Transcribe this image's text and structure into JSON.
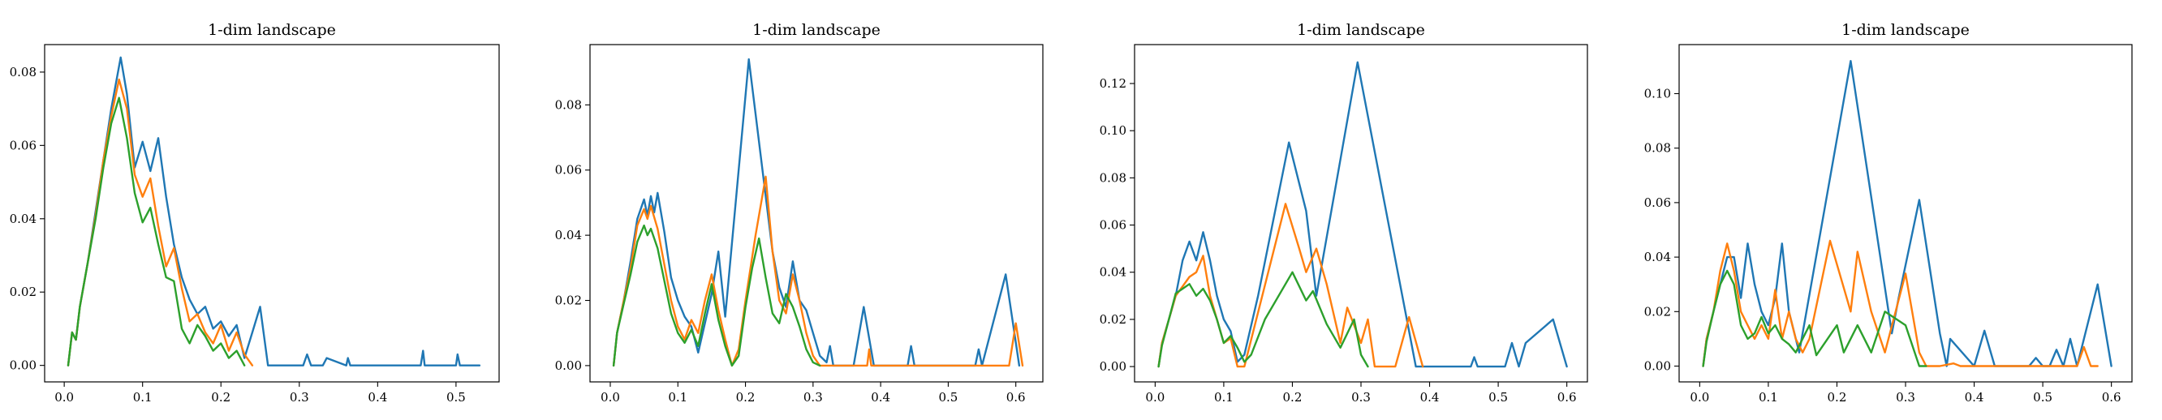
{
  "chart_data": [
    {
      "type": "line",
      "title": "1-dim landscape",
      "xlabel": "",
      "ylabel": "",
      "xlim": [
        -0.025,
        0.555
      ],
      "ylim": [
        -0.0045,
        0.0875
      ],
      "xticks": [
        0.0,
        0.1,
        0.2,
        0.3,
        0.4,
        0.5
      ],
      "xtick_labels": [
        "0.0",
        "0.1",
        "0.2",
        "0.3",
        "0.4",
        "0.5"
      ],
      "yticks": [
        0.0,
        0.02,
        0.04,
        0.06,
        0.08
      ],
      "ytick_labels": [
        "0.00",
        "0.02",
        "0.04",
        "0.06",
        "0.08"
      ],
      "grid": false,
      "series": [
        {
          "color": "#1f77b4",
          "x": [
            0.005,
            0.01,
            0.015,
            0.02,
            0.03,
            0.04,
            0.05,
            0.06,
            0.072,
            0.08,
            0.09,
            0.1,
            0.11,
            0.12,
            0.13,
            0.14,
            0.15,
            0.16,
            0.17,
            0.18,
            0.19,
            0.2,
            0.21,
            0.22,
            0.23,
            0.24,
            0.25,
            0.26,
            0.305,
            0.31,
            0.315,
            0.33,
            0.335,
            0.36,
            0.362,
            0.365,
            0.455,
            0.458,
            0.46,
            0.5,
            0.502,
            0.505,
            0.53
          ],
          "y": [
            0.0,
            0.009,
            0.007,
            0.016,
            0.028,
            0.042,
            0.056,
            0.07,
            0.084,
            0.074,
            0.054,
            0.061,
            0.053,
            0.062,
            0.046,
            0.033,
            0.024,
            0.018,
            0.014,
            0.016,
            0.01,
            0.012,
            0.008,
            0.011,
            0.002,
            0.009,
            0.016,
            0.0,
            0.0,
            0.003,
            0.0,
            0.0,
            0.002,
            0.0,
            0.002,
            0.0,
            0.0,
            0.004,
            0.0,
            0.0,
            0.003,
            0.0,
            0.0
          ]
        },
        {
          "color": "#ff7f0e",
          "x": [
            0.005,
            0.01,
            0.015,
            0.02,
            0.03,
            0.04,
            0.05,
            0.06,
            0.07,
            0.08,
            0.09,
            0.1,
            0.11,
            0.12,
            0.13,
            0.14,
            0.15,
            0.16,
            0.17,
            0.18,
            0.19,
            0.2,
            0.21,
            0.22,
            0.23,
            0.24
          ],
          "y": [
            0.0,
            0.009,
            0.007,
            0.016,
            0.028,
            0.041,
            0.056,
            0.068,
            0.078,
            0.07,
            0.052,
            0.046,
            0.051,
            0.038,
            0.027,
            0.032,
            0.021,
            0.012,
            0.014,
            0.009,
            0.006,
            0.011,
            0.004,
            0.009,
            0.003,
            0.0
          ]
        },
        {
          "color": "#2ca02c",
          "x": [
            0.005,
            0.01,
            0.015,
            0.02,
            0.03,
            0.04,
            0.05,
            0.06,
            0.07,
            0.08,
            0.09,
            0.1,
            0.11,
            0.12,
            0.13,
            0.14,
            0.15,
            0.16,
            0.17,
            0.18,
            0.19,
            0.2,
            0.21,
            0.22,
            0.23
          ],
          "y": [
            0.0,
            0.009,
            0.007,
            0.016,
            0.028,
            0.04,
            0.054,
            0.066,
            0.073,
            0.062,
            0.047,
            0.039,
            0.043,
            0.033,
            0.024,
            0.023,
            0.01,
            0.006,
            0.011,
            0.008,
            0.004,
            0.006,
            0.002,
            0.004,
            0.0
          ]
        }
      ]
    },
    {
      "type": "line",
      "title": "1-dim landscape",
      "xlabel": "",
      "ylabel": "",
      "xlim": [
        -0.03,
        0.64
      ],
      "ylim": [
        -0.005,
        0.0985
      ],
      "xticks": [
        0.0,
        0.1,
        0.2,
        0.3,
        0.4,
        0.5,
        0.6
      ],
      "xtick_labels": [
        "0.0",
        "0.1",
        "0.2",
        "0.3",
        "0.4",
        "0.5",
        "0.6"
      ],
      "yticks": [
        0.0,
        0.02,
        0.04,
        0.06,
        0.08
      ],
      "ytick_labels": [
        "0.00",
        "0.02",
        "0.04",
        "0.06",
        "0.08"
      ],
      "grid": false,
      "series": [
        {
          "color": "#1f77b4",
          "x": [
            0.005,
            0.01,
            0.02,
            0.03,
            0.04,
            0.05,
            0.055,
            0.06,
            0.065,
            0.07,
            0.08,
            0.09,
            0.1,
            0.11,
            0.12,
            0.13,
            0.15,
            0.16,
            0.17,
            0.205,
            0.24,
            0.25,
            0.26,
            0.27,
            0.28,
            0.29,
            0.3,
            0.31,
            0.32,
            0.325,
            0.33,
            0.335,
            0.36,
            0.375,
            0.39,
            0.44,
            0.445,
            0.45,
            0.54,
            0.545,
            0.55,
            0.585,
            0.605
          ],
          "y": [
            0.0,
            0.01,
            0.02,
            0.032,
            0.045,
            0.051,
            0.046,
            0.052,
            0.047,
            0.053,
            0.041,
            0.027,
            0.02,
            0.015,
            0.012,
            0.004,
            0.022,
            0.035,
            0.015,
            0.094,
            0.035,
            0.024,
            0.018,
            0.032,
            0.02,
            0.017,
            0.01,
            0.003,
            0.001,
            0.006,
            0.0,
            0.0,
            0.0,
            0.018,
            0.0,
            0.0,
            0.006,
            0.0,
            0.0,
            0.005,
            0.0,
            0.028,
            0.0
          ]
        },
        {
          "color": "#ff7f0e",
          "x": [
            0.005,
            0.01,
            0.02,
            0.03,
            0.04,
            0.05,
            0.055,
            0.06,
            0.07,
            0.08,
            0.09,
            0.1,
            0.11,
            0.12,
            0.13,
            0.14,
            0.15,
            0.16,
            0.17,
            0.18,
            0.19,
            0.2,
            0.215,
            0.23,
            0.24,
            0.25,
            0.26,
            0.27,
            0.28,
            0.29,
            0.3,
            0.31,
            0.32,
            0.38,
            0.383,
            0.386,
            0.59,
            0.6,
            0.61
          ],
          "y": [
            0.0,
            0.01,
            0.02,
            0.03,
            0.043,
            0.048,
            0.045,
            0.049,
            0.042,
            0.031,
            0.02,
            0.012,
            0.008,
            0.014,
            0.01,
            0.02,
            0.028,
            0.017,
            0.008,
            0.0,
            0.005,
            0.02,
            0.04,
            0.058,
            0.035,
            0.02,
            0.016,
            0.028,
            0.02,
            0.01,
            0.003,
            0.0,
            0.0,
            0.0,
            0.005,
            0.0,
            0.0,
            0.013,
            0.0
          ]
        },
        {
          "color": "#2ca02c",
          "x": [
            0.005,
            0.01,
            0.02,
            0.03,
            0.04,
            0.05,
            0.055,
            0.06,
            0.07,
            0.08,
            0.09,
            0.1,
            0.11,
            0.12,
            0.13,
            0.14,
            0.15,
            0.16,
            0.17,
            0.18,
            0.19,
            0.2,
            0.21,
            0.22,
            0.23,
            0.24,
            0.25,
            0.26,
            0.27,
            0.28,
            0.29,
            0.3,
            0.31
          ],
          "y": [
            0.0,
            0.01,
            0.019,
            0.028,
            0.038,
            0.043,
            0.04,
            0.042,
            0.036,
            0.026,
            0.016,
            0.01,
            0.007,
            0.011,
            0.006,
            0.016,
            0.025,
            0.014,
            0.006,
            0.0,
            0.003,
            0.018,
            0.03,
            0.039,
            0.027,
            0.016,
            0.013,
            0.022,
            0.018,
            0.012,
            0.005,
            0.001,
            0.0
          ]
        }
      ]
    },
    {
      "type": "line",
      "title": "1-dim landscape",
      "xlabel": "",
      "ylabel": "",
      "xlim": [
        -0.03,
        0.63
      ],
      "ylim": [
        -0.0065,
        0.1365
      ],
      "xticks": [
        0.0,
        0.1,
        0.2,
        0.3,
        0.4,
        0.5,
        0.6
      ],
      "xtick_labels": [
        "0.0",
        "0.1",
        "0.2",
        "0.3",
        "0.4",
        "0.5",
        "0.6"
      ],
      "yticks": [
        0.0,
        0.02,
        0.04,
        0.06,
        0.08,
        0.1,
        0.12
      ],
      "ytick_labels": [
        "0.00",
        "0.02",
        "0.04",
        "0.06",
        "0.08",
        "0.10",
        "0.12"
      ],
      "grid": false,
      "series": [
        {
          "color": "#1f77b4",
          "x": [
            0.005,
            0.01,
            0.02,
            0.03,
            0.04,
            0.05,
            0.06,
            0.07,
            0.08,
            0.09,
            0.1,
            0.11,
            0.12,
            0.13,
            0.15,
            0.195,
            0.22,
            0.235,
            0.295,
            0.38,
            0.46,
            0.465,
            0.47,
            0.51,
            0.52,
            0.53,
            0.54,
            0.58,
            0.6
          ],
          "y": [
            0.0,
            0.01,
            0.02,
            0.03,
            0.045,
            0.053,
            0.045,
            0.057,
            0.045,
            0.03,
            0.02,
            0.015,
            0.002,
            0.005,
            0.03,
            0.095,
            0.066,
            0.03,
            0.129,
            0.0,
            0.0,
            0.004,
            0.0,
            0.0,
            0.01,
            0.0,
            0.01,
            0.02,
            0.0
          ]
        },
        {
          "color": "#ff7f0e",
          "x": [
            0.005,
            0.01,
            0.02,
            0.03,
            0.04,
            0.05,
            0.06,
            0.07,
            0.08,
            0.09,
            0.1,
            0.11,
            0.12,
            0.13,
            0.19,
            0.21,
            0.22,
            0.235,
            0.25,
            0.27,
            0.28,
            0.3,
            0.31,
            0.32,
            0.33,
            0.35,
            0.37,
            0.39
          ],
          "y": [
            0.0,
            0.01,
            0.02,
            0.03,
            0.034,
            0.038,
            0.04,
            0.047,
            0.03,
            0.02,
            0.01,
            0.012,
            0.0,
            0.0,
            0.069,
            0.05,
            0.04,
            0.05,
            0.035,
            0.01,
            0.025,
            0.01,
            0.02,
            0.0,
            0.0,
            0.0,
            0.021,
            0.0
          ]
        },
        {
          "color": "#2ca02c",
          "x": [
            0.005,
            0.01,
            0.02,
            0.03,
            0.04,
            0.05,
            0.06,
            0.07,
            0.08,
            0.09,
            0.1,
            0.11,
            0.12,
            0.13,
            0.14,
            0.16,
            0.2,
            0.22,
            0.23,
            0.25,
            0.27,
            0.29,
            0.3,
            0.31
          ],
          "y": [
            0.0,
            0.009,
            0.02,
            0.031,
            0.033,
            0.035,
            0.03,
            0.033,
            0.028,
            0.02,
            0.01,
            0.013,
            0.008,
            0.002,
            0.005,
            0.02,
            0.04,
            0.028,
            0.032,
            0.018,
            0.008,
            0.02,
            0.005,
            0.0
          ]
        }
      ]
    },
    {
      "type": "line",
      "title": "1-dim landscape",
      "xlabel": "",
      "ylabel": "",
      "xlim": [
        -0.03,
        0.63
      ],
      "ylim": [
        -0.0058,
        0.118
      ],
      "xticks": [
        0.0,
        0.1,
        0.2,
        0.3,
        0.4,
        0.5,
        0.6
      ],
      "xtick_labels": [
        "0.0",
        "0.1",
        "0.2",
        "0.3",
        "0.4",
        "0.5",
        "0.6"
      ],
      "yticks": [
        0.0,
        0.02,
        0.04,
        0.06,
        0.08,
        0.1
      ],
      "ytick_labels": [
        "0.00",
        "0.02",
        "0.04",
        "0.06",
        "0.08",
        "0.10"
      ],
      "grid": false,
      "series": [
        {
          "color": "#1f77b4",
          "x": [
            0.005,
            0.01,
            0.02,
            0.03,
            0.04,
            0.05,
            0.06,
            0.07,
            0.08,
            0.09,
            0.1,
            0.11,
            0.12,
            0.13,
            0.145,
            0.22,
            0.28,
            0.29,
            0.32,
            0.35,
            0.36,
            0.365,
            0.4,
            0.415,
            0.43,
            0.48,
            0.49,
            0.5,
            0.51,
            0.52,
            0.53,
            0.54,
            0.55,
            0.56,
            0.58,
            0.6
          ],
          "y": [
            0.0,
            0.01,
            0.02,
            0.03,
            0.04,
            0.04,
            0.025,
            0.045,
            0.03,
            0.02,
            0.015,
            0.025,
            0.045,
            0.02,
            0.005,
            0.112,
            0.012,
            0.025,
            0.061,
            0.012,
            0.0,
            0.01,
            0.0,
            0.013,
            0.0,
            0.0,
            0.003,
            0.0,
            0.0,
            0.006,
            0.0,
            0.01,
            0.0,
            0.01,
            0.03,
            0.0
          ]
        },
        {
          "color": "#ff7f0e",
          "x": [
            0.005,
            0.01,
            0.02,
            0.03,
            0.04,
            0.05,
            0.06,
            0.07,
            0.08,
            0.09,
            0.1,
            0.11,
            0.12,
            0.13,
            0.14,
            0.15,
            0.16,
            0.19,
            0.22,
            0.23,
            0.25,
            0.27,
            0.3,
            0.32,
            0.33,
            0.35,
            0.37,
            0.38,
            0.55,
            0.56,
            0.57,
            0.58
          ],
          "y": [
            0.0,
            0.01,
            0.02,
            0.035,
            0.045,
            0.035,
            0.02,
            0.015,
            0.01,
            0.015,
            0.01,
            0.028,
            0.01,
            0.02,
            0.01,
            0.005,
            0.01,
            0.046,
            0.02,
            0.042,
            0.02,
            0.005,
            0.034,
            0.005,
            0.0,
            0.0,
            0.001,
            0.0,
            0.0,
            0.007,
            0.0,
            0.0
          ]
        },
        {
          "color": "#2ca02c",
          "x": [
            0.005,
            0.01,
            0.02,
            0.03,
            0.04,
            0.05,
            0.06,
            0.07,
            0.08,
            0.09,
            0.1,
            0.11,
            0.12,
            0.13,
            0.14,
            0.16,
            0.17,
            0.2,
            0.21,
            0.23,
            0.25,
            0.27,
            0.3,
            0.32,
            0.33
          ],
          "y": [
            0.0,
            0.009,
            0.02,
            0.03,
            0.035,
            0.03,
            0.015,
            0.01,
            0.012,
            0.018,
            0.012,
            0.015,
            0.01,
            0.008,
            0.005,
            0.015,
            0.004,
            0.015,
            0.005,
            0.015,
            0.005,
            0.02,
            0.015,
            0.0,
            0.0
          ]
        }
      ]
    }
  ]
}
